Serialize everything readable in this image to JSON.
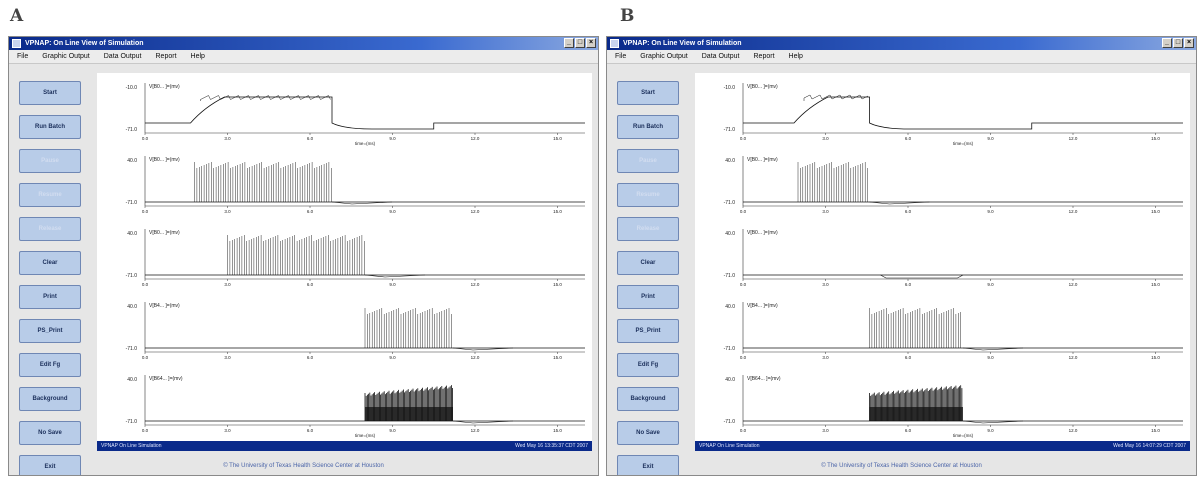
{
  "panels": [
    {
      "letter": "A",
      "title": "VPNAP: On Line View of Simulation",
      "window_buttons": [
        "_",
        "□",
        "×"
      ],
      "menu": [
        "File",
        "Graphic Output",
        "Data Output",
        "Report",
        "Help"
      ],
      "buttons": [
        {
          "label": "Start",
          "enabled": true
        },
        {
          "label": "Run Batch",
          "enabled": true
        },
        {
          "label": "Pause",
          "enabled": false
        },
        {
          "label": "Resume",
          "enabled": false
        },
        {
          "label": "Release",
          "enabled": false
        },
        {
          "label": "Clear",
          "enabled": true
        },
        {
          "label": "Print",
          "enabled": true
        },
        {
          "label": "PS_Print",
          "enabled": true
        },
        {
          "label": "Edit Fg",
          "enabled": true
        },
        {
          "label": "Background",
          "enabled": true
        },
        {
          "label": "No Save",
          "enabled": true
        },
        {
          "label": "Exit",
          "enabled": true
        }
      ],
      "status_left": "VPNAP On Line Simulation",
      "status_right": "Wed May 16 13:35:37 CDT 2007",
      "footer": "© The University of Texas Health Science Center at Houston",
      "traces": [
        {
          "label": "V[B0... ]=(mv)",
          "ytop": "-10.0",
          "ybot": "-71.0",
          "kind": "plateau",
          "start": 1.8,
          "end": 6.8,
          "xlabel": "time=(ms)"
        },
        {
          "label": "V[B0... ]=(mv)",
          "ytop": "40.0",
          "ybot": "-71.0",
          "kind": "spikes",
          "start": 1.8,
          "end": 6.8
        },
        {
          "label": "V[B0... ]=(mv)",
          "ytop": "40.0",
          "ybot": "-71.0",
          "kind": "spikes",
          "start": 3.0,
          "end": 8.0
        },
        {
          "label": "V[B4... ]=(mv)",
          "ytop": "40.0",
          "ybot": "-71.0",
          "kind": "spikes",
          "start": 8.0,
          "end": 11.2
        },
        {
          "label": "V[B64... ]=(mv)",
          "ytop": "40.0",
          "ybot": "-71.0",
          "kind": "dense",
          "start": 8.0,
          "end": 11.2,
          "xlabel": "time=(ms)"
        }
      ]
    },
    {
      "letter": "B",
      "title": "VPNAP: On Line View of Simulation",
      "window_buttons": [
        "_",
        "□",
        "×"
      ],
      "menu": [
        "File",
        "Graphic Output",
        "Data Output",
        "Report",
        "Help"
      ],
      "buttons": [
        {
          "label": "Start",
          "enabled": true
        },
        {
          "label": "Run Batch",
          "enabled": true
        },
        {
          "label": "Pause",
          "enabled": false
        },
        {
          "label": "Resume",
          "enabled": false
        },
        {
          "label": "Release",
          "enabled": false
        },
        {
          "label": "Clear",
          "enabled": true
        },
        {
          "label": "Print",
          "enabled": true
        },
        {
          "label": "PS_Print",
          "enabled": true
        },
        {
          "label": "Edit Fg",
          "enabled": true
        },
        {
          "label": "Background",
          "enabled": true
        },
        {
          "label": "No Save",
          "enabled": true
        },
        {
          "label": "Exit",
          "enabled": true
        }
      ],
      "status_left": "VPNAP On Line Simulation",
      "status_right": "Wed May 16 14:07:29 CDT 2007",
      "footer": "© The University of Texas Health Science Center at Houston",
      "traces": [
        {
          "label": "V[B0... ]=(mv)",
          "ytop": "-10.0",
          "ybot": "-71.0",
          "kind": "plateau",
          "start": 2.0,
          "end": 4.6,
          "xlabel": "time=(ms)"
        },
        {
          "label": "V[B0... ]=(mv)",
          "ytop": "40.0",
          "ybot": "-71.0",
          "kind": "spikes",
          "start": 2.0,
          "end": 4.6
        },
        {
          "label": "V[B0... ]=(mv)",
          "ytop": "40.0",
          "ybot": "-71.0",
          "kind": "flat",
          "start": 0,
          "end": 0
        },
        {
          "label": "V[B4... ]=(mv)",
          "ytop": "40.0",
          "ybot": "-71.0",
          "kind": "spikes",
          "start": 4.6,
          "end": 8.0
        },
        {
          "label": "V[B64... ]=(mv)",
          "ytop": "40.0",
          "ybot": "-71.0",
          "kind": "dense",
          "start": 4.6,
          "end": 8.0,
          "xlabel": "time=(ms)"
        }
      ]
    }
  ],
  "x_ticks": [
    "0.0",
    "3.0",
    "6.0",
    "9.0",
    "12.0",
    "15.0"
  ],
  "x_range": [
    0,
    16
  ],
  "trace_color": "#111111",
  "axis_color": "#333333"
}
